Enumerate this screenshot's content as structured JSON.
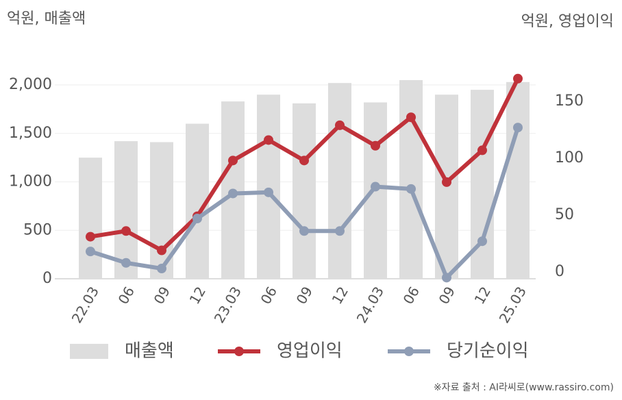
{
  "chart_data": {
    "type": "combo",
    "left_unit_label": "억원, 매출액",
    "right_unit_label": "억원, 영업이익",
    "source": "※자료 출처 : AI라씨로(www.rassiro.com)",
    "categories": [
      "22.03",
      "06",
      "09",
      "12",
      "23.03",
      "06",
      "09",
      "12",
      "24.03",
      "06",
      "09",
      "12",
      "25.03"
    ],
    "series": [
      {
        "name": "매출액",
        "type": "bar",
        "color": "#dddddd",
        "axis": "y",
        "values": [
          1250,
          1420,
          1410,
          1600,
          1830,
          1900,
          1810,
          2020,
          1820,
          2050,
          1900,
          1950,
          2030
        ]
      },
      {
        "name": "영업이익",
        "type": "line",
        "color": "#c0323a",
        "axis": "y2",
        "values": [
          31,
          36,
          19,
          49,
          98,
          116,
          98,
          129,
          111,
          136,
          79,
          107,
          170
        ]
      },
      {
        "name": "당기순이익",
        "type": "line",
        "color": "#8f9db5",
        "axis": "y2",
        "values": [
          18,
          8,
          3,
          47,
          69,
          70,
          36,
          36,
          75,
          73,
          -5,
          27,
          127
        ]
      }
    ],
    "ylim": [
      0,
      2300
    ],
    "yticks": [
      0,
      500,
      {
        "value": 1000,
        "label": "1,000"
      },
      {
        "value": 1500,
        "label": "1,500"
      },
      {
        "value": 2000,
        "label": "2,000"
      }
    ],
    "y2lim": [
      -6,
      190
    ],
    "y2ticks": [
      0,
      50,
      100,
      150
    ],
    "grid": true
  }
}
